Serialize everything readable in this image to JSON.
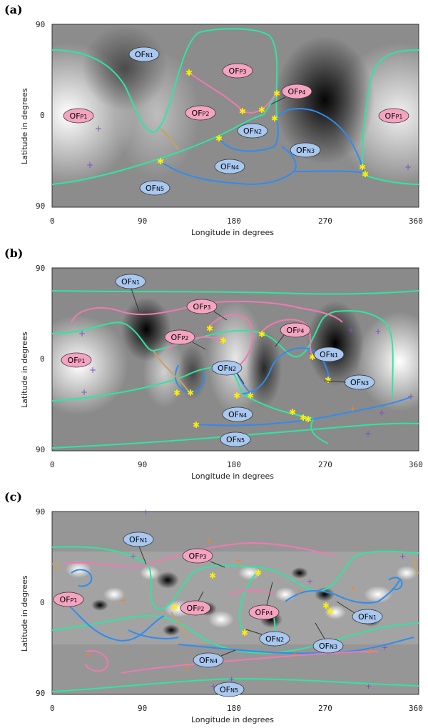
{
  "panels": [
    {
      "letter": "(a)",
      "xlabel": "Longitude in degrees",
      "ylabel": "Latitude in degrees",
      "xticks": [
        "0",
        "90",
        "180",
        "270",
        "360"
      ],
      "yticks": [
        "90",
        "0",
        "90"
      ],
      "labels": [
        {
          "base": "OF",
          "sub": "N1",
          "kind": "N"
        },
        {
          "base": "OF",
          "sub": "P3",
          "kind": "P"
        },
        {
          "base": "OF",
          "sub": "P4",
          "kind": "P"
        },
        {
          "base": "OF",
          "sub": "P1",
          "kind": "P"
        },
        {
          "base": "OF",
          "sub": "P2",
          "kind": "P"
        },
        {
          "base": "OF",
          "sub": "N2",
          "kind": "N"
        },
        {
          "base": "OF",
          "sub": "P1",
          "kind": "P"
        },
        {
          "base": "OF",
          "sub": "N3",
          "kind": "N"
        },
        {
          "base": "OF",
          "sub": "N4",
          "kind": "N"
        },
        {
          "base": "OF",
          "sub": "N5",
          "kind": "N"
        }
      ]
    },
    {
      "letter": "(b)",
      "xlabel": "Longitude in degrees",
      "ylabel": "Latitude in degrees",
      "xticks": [
        "0",
        "90",
        "180",
        "270",
        "360"
      ],
      "yticks": [
        "90",
        "0",
        "90"
      ],
      "labels": [
        {
          "base": "OF",
          "sub": "N1",
          "kind": "N"
        },
        {
          "base": "OF",
          "sub": "P3",
          "kind": "P"
        },
        {
          "base": "OF",
          "sub": "P2",
          "kind": "P"
        },
        {
          "base": "OF",
          "sub": "P4",
          "kind": "P"
        },
        {
          "base": "OF",
          "sub": "P1",
          "kind": "P"
        },
        {
          "base": "OF",
          "sub": "N1",
          "kind": "N"
        },
        {
          "base": "OF",
          "sub": "N2",
          "kind": "N"
        },
        {
          "base": "OF",
          "sub": "N3",
          "kind": "N"
        },
        {
          "base": "OF",
          "sub": "N4",
          "kind": "N"
        },
        {
          "base": "OF",
          "sub": "N5",
          "kind": "N"
        }
      ]
    },
    {
      "letter": "(c)",
      "xlabel": "Longitude in degrees",
      "ylabel": "Latitude in degrees",
      "xticks": [
        "0",
        "90",
        "180",
        "270",
        "360"
      ],
      "yticks": [
        "90",
        "0",
        "90"
      ],
      "labels": [
        {
          "base": "OF",
          "sub": "N1",
          "kind": "N"
        },
        {
          "base": "OF",
          "sub": "P3",
          "kind": "P"
        },
        {
          "base": "OF",
          "sub": "P1",
          "kind": "P"
        },
        {
          "base": "OF",
          "sub": "P2",
          "kind": "P"
        },
        {
          "base": "OF",
          "sub": "P4",
          "kind": "P"
        },
        {
          "base": "OF",
          "sub": "N1",
          "kind": "N"
        },
        {
          "base": "OF",
          "sub": "N2",
          "kind": "N"
        },
        {
          "base": "OF",
          "sub": "N3",
          "kind": "N"
        },
        {
          "base": "OF",
          "sub": "N4",
          "kind": "N"
        },
        {
          "base": "OF",
          "sub": "N5",
          "kind": "N"
        }
      ]
    }
  ],
  "colors": {
    "positive_label_fill": "#f4a4c0",
    "negative_label_fill": "#a9c8f0",
    "green_line": "#2ee6a0",
    "blue_line": "#2f8cf0",
    "pink_line": "#f07ab0",
    "tan_line": "#c8a060",
    "null_marker": "#ffee00",
    "purple_marker": "#8050c0",
    "orange_marker": "#ff8020"
  }
}
